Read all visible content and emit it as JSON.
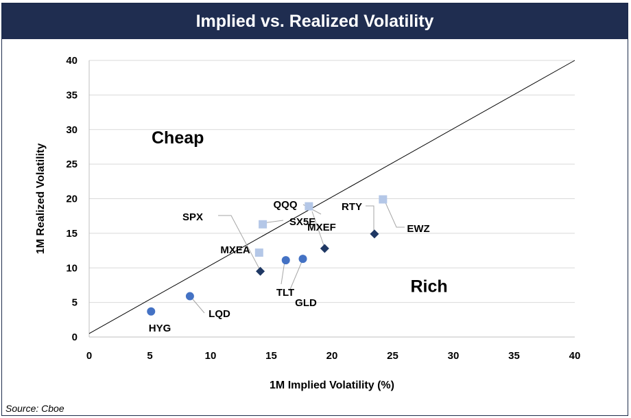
{
  "title": "Implied vs. Realized Volatility",
  "source": "Source: Cboe",
  "chart_data": {
    "type": "scatter",
    "title": "Implied vs. Realized Volatility",
    "xlabel": "1M Implied Volatility (%)",
    "ylabel": "1M Realized Volatility",
    "xlim": [
      0,
      40
    ],
    "ylim": [
      0,
      40
    ],
    "x_ticks": [
      0,
      5,
      10,
      15,
      20,
      25,
      30,
      35,
      40
    ],
    "y_ticks": [
      0,
      5,
      10,
      15,
      20,
      25,
      30,
      35,
      40
    ],
    "grid": "horizontal",
    "reference_line": {
      "from": [
        0,
        0.5
      ],
      "to": [
        40,
        40
      ]
    },
    "annotations": [
      {
        "text": "Cheap",
        "x": 7.3,
        "y": 28
      },
      {
        "text": "Rich",
        "x": 28,
        "y": 6.5
      }
    ],
    "points": [
      {
        "label": "HYG",
        "x": 5.1,
        "y": 3.7,
        "marker": "circle",
        "color": "#4472c4"
      },
      {
        "label": "LQD",
        "x": 8.3,
        "y": 5.9,
        "marker": "circle",
        "color": "#4472c4"
      },
      {
        "label": "TLT",
        "x": 16.2,
        "y": 11.1,
        "marker": "circle",
        "color": "#4472c4"
      },
      {
        "label": "GLD",
        "x": 17.6,
        "y": 11.3,
        "marker": "circle",
        "color": "#4472c4"
      },
      {
        "label": "SPX",
        "x": 14.1,
        "y": 9.5,
        "marker": "diamond",
        "color": "#1f3864"
      },
      {
        "label": "MXEF",
        "x": 19.4,
        "y": 12.8,
        "marker": "diamond",
        "color": "#1f3864"
      },
      {
        "label": "RTY",
        "x": 23.5,
        "y": 14.9,
        "marker": "diamond",
        "color": "#1f3864"
      },
      {
        "label": "MXEA",
        "x": 14.0,
        "y": 12.2,
        "marker": "square",
        "color": "#b4c7e7"
      },
      {
        "label": "SX5E",
        "x": 14.3,
        "y": 16.3,
        "marker": "square",
        "color": "#b4c7e7"
      },
      {
        "label": "QQQ",
        "x": 18.1,
        "y": 18.9,
        "marker": "square",
        "color": "#b4c7e7"
      },
      {
        "label": "EWZ",
        "x": 24.2,
        "y": 19.9,
        "marker": "square",
        "color": "#b4c7e7"
      }
    ]
  }
}
